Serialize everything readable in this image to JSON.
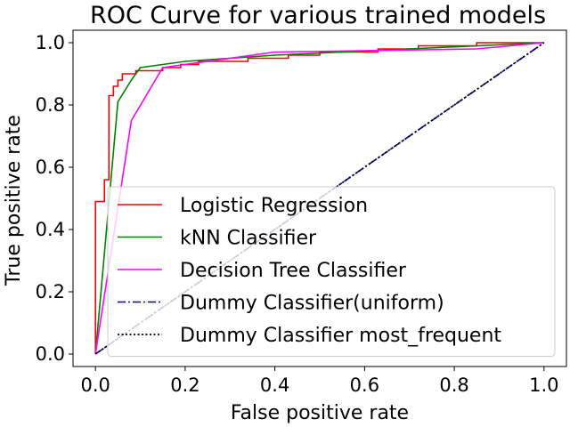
{
  "chart_data": {
    "type": "line",
    "title": "ROC Curve for various trained models",
    "xlabel": "False positive rate",
    "ylabel": "True positive rate",
    "xlim": [
      -0.05,
      1.05
    ],
    "ylim": [
      -0.04,
      1.04
    ],
    "x_ticks": [
      {
        "value": 0.0,
        "label": "0.0"
      },
      {
        "value": 0.2,
        "label": "0.2"
      },
      {
        "value": 0.4,
        "label": "0.4"
      },
      {
        "value": 0.6,
        "label": "0.6"
      },
      {
        "value": 0.8,
        "label": "0.8"
      },
      {
        "value": 1.0,
        "label": "1.0"
      }
    ],
    "y_ticks": [
      {
        "value": 0.0,
        "label": "0.0"
      },
      {
        "value": 0.2,
        "label": "0.2"
      },
      {
        "value": 0.4,
        "label": "0.4"
      },
      {
        "value": 0.6,
        "label": "0.6"
      },
      {
        "value": 0.8,
        "label": "0.8"
      },
      {
        "value": 1.0,
        "label": "1.0"
      }
    ],
    "grid": false,
    "legend_position": "lower-right",
    "series": [
      {
        "name": "Logistic Regression",
        "color": "#ff0000",
        "style": "solid",
        "x": [
          0,
          0,
          0.02,
          0.02,
          0.03,
          0.03,
          0.04,
          0.04,
          0.05,
          0.05,
          0.06,
          0.06,
          0.09,
          0.09,
          0.15,
          0.15,
          0.19,
          0.19,
          0.23,
          0.23,
          0.34,
          0.34,
          0.43,
          0.43,
          0.5,
          0.5,
          0.63,
          0.63,
          0.72,
          0.72,
          0.85,
          0.85,
          1.0
        ],
        "y": [
          0,
          0.49,
          0.49,
          0.56,
          0.56,
          0.83,
          0.83,
          0.86,
          0.86,
          0.88,
          0.88,
          0.9,
          0.9,
          0.91,
          0.91,
          0.92,
          0.92,
          0.93,
          0.93,
          0.94,
          0.94,
          0.95,
          0.95,
          0.96,
          0.96,
          0.97,
          0.97,
          0.98,
          0.98,
          0.99,
          0.99,
          1.0,
          1.0
        ]
      },
      {
        "name": "kNN Classifier",
        "color": "#008000",
        "style": "solid",
        "x": [
          0,
          0.05,
          0.08,
          0.1,
          0.2,
          0.4,
          0.7,
          1.0
        ],
        "y": [
          0,
          0.81,
          0.88,
          0.92,
          0.94,
          0.96,
          0.98,
          1.0
        ]
      },
      {
        "name": "Decision Tree Classifier",
        "color": "#ff00ff",
        "style": "solid",
        "x": [
          0,
          0.08,
          0.15,
          0.4,
          0.85,
          1.0
        ],
        "y": [
          0,
          0.75,
          0.92,
          0.97,
          0.98,
          1.0
        ]
      },
      {
        "name": "Dummy Classifier(uniform)",
        "color": "#0000aa",
        "style": "dashdot",
        "x": [
          0,
          1.0
        ],
        "y": [
          0,
          1.0
        ]
      },
      {
        "name": "Dummy Classifier most_frequent",
        "color": "#000000",
        "style": "dotted",
        "x": [
          0,
          1.0
        ],
        "y": [
          0,
          1.0
        ]
      }
    ]
  }
}
